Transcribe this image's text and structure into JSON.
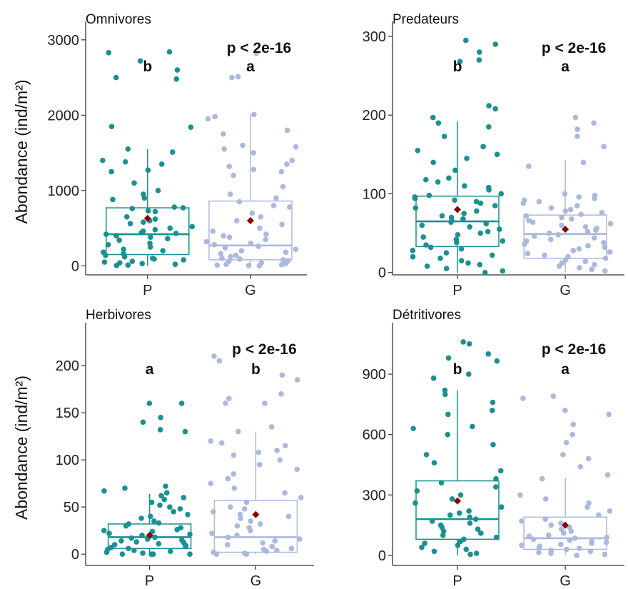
{
  "colors": {
    "P": "#1b9090",
    "G": "#aab9dc",
    "mean": "#8b0000",
    "axis": "#333333"
  },
  "chart_data": [
    {
      "type": "boxplot",
      "title": "Omnivores",
      "ylabel": "Abondance (ind/m²)",
      "categories": [
        "P",
        "G"
      ],
      "ylim": [
        -120,
        3150
      ],
      "yticks": [
        0,
        1000,
        2000,
        3000
      ],
      "yticklabels": [
        "0",
        "1000",
        "2000",
        "3000"
      ],
      "pvalue": "p < 2e-16",
      "letters": [
        "b",
        "a"
      ],
      "boxes": [
        {
          "q1": 150,
          "median": 420,
          "q3": 770,
          "whisker_low": 0,
          "whisker_high": 1550,
          "mean": 630
        },
        {
          "q1": 80,
          "median": 270,
          "q3": 860,
          "whisker_low": 0,
          "whisker_high": 2020,
          "mean": 600
        }
      ],
      "points": [
        [
          2840,
          2830,
          2720,
          2600,
          2500,
          2480,
          1850,
          1840,
          1550,
          1510,
          1400,
          1380,
          1350,
          1270,
          1250,
          1100,
          1000,
          950,
          900,
          880,
          780,
          770,
          760,
          730,
          720,
          650,
          620,
          600,
          580,
          560,
          520,
          500,
          480,
          460,
          440,
          430,
          420,
          400,
          380,
          360,
          340,
          300,
          280,
          250,
          220,
          200,
          180,
          160,
          140,
          120,
          100,
          90,
          80,
          60,
          50,
          40,
          30,
          20,
          10,
          5
        ],
        [
          2820,
          2510,
          2500,
          2010,
          1980,
          1950,
          1800,
          1750,
          1600,
          1580,
          1550,
          1500,
          1400,
          1350,
          1320,
          1280,
          1250,
          1200,
          1050,
          950,
          900,
          850,
          800,
          780,
          700,
          650,
          600,
          550,
          500,
          460,
          420,
          400,
          380,
          350,
          320,
          300,
          280,
          260,
          240,
          220,
          200,
          180,
          160,
          140,
          120,
          100,
          90,
          80,
          70,
          60,
          50,
          40,
          30,
          20,
          15,
          10,
          5,
          0
        ]
      ]
    },
    {
      "type": "boxplot",
      "title": "Predateurs",
      "ylabel": "",
      "categories": [
        "P",
        "G"
      ],
      "ylim": [
        -3,
        310
      ],
      "yticks": [
        0,
        100,
        200,
        300
      ],
      "yticklabels": [
        "0",
        "100",
        "200",
        "300"
      ],
      "pvalue": "p < 2e-16",
      "letters": [
        "b",
        "a"
      ],
      "boxes": [
        {
          "q1": 33,
          "median": 65,
          "q3": 97,
          "whisker_low": 0,
          "whisker_high": 192,
          "mean": 80
        },
        {
          "q1": 18,
          "median": 49,
          "q3": 73,
          "whisker_low": 0,
          "whisker_high": 143,
          "mean": 55
        }
      ],
      "points": [
        [
          295,
          290,
          280,
          270,
          268,
          212,
          208,
          197,
          190,
          185,
          173,
          160,
          155,
          150,
          145,
          140,
          130,
          120,
          118,
          115,
          110,
          108,
          105,
          100,
          98,
          96,
          94,
          92,
          90,
          88,
          85,
          82,
          78,
          75,
          72,
          70,
          68,
          66,
          64,
          62,
          60,
          58,
          55,
          52,
          50,
          48,
          45,
          42,
          40,
          38,
          35,
          32,
          30,
          28,
          25,
          22,
          20,
          18,
          15,
          12,
          10,
          8,
          5,
          2,
          0
        ],
        [
          197,
          190,
          182,
          173,
          160,
          140,
          135,
          100,
          98,
          96,
          94,
          92,
          90,
          88,
          85,
          82,
          80,
          78,
          76,
          74,
          72,
          70,
          68,
          66,
          64,
          62,
          60,
          58,
          56,
          54,
          52,
          50,
          48,
          46,
          44,
          42,
          40,
          38,
          36,
          34,
          32,
          30,
          28,
          26,
          24,
          22,
          20,
          18,
          16,
          14,
          12,
          10,
          8,
          6,
          4,
          2
        ]
      ]
    },
    {
      "type": "boxplot",
      "title": "Herbivores",
      "ylabel": "Abondance (ind/m²)",
      "categories": [
        "P",
        "G"
      ],
      "ylim": [
        -12,
        238
      ],
      "yticks": [
        0,
        50,
        100,
        150,
        200
      ],
      "yticklabels": [
        "0",
        "50",
        "100",
        "150",
        "200"
      ],
      "pvalue": "p < 2e-16",
      "letters": [
        "a",
        "b"
      ],
      "boxes": [
        {
          "q1": 6,
          "median": 18,
          "q3": 32,
          "whisker_low": 0,
          "whisker_high": 64,
          "mean": 20
        },
        {
          "q1": 2,
          "median": 18,
          "q3": 57,
          "whisker_low": 0,
          "whisker_high": 130,
          "mean": 42
        }
      ],
      "points": [
        [
          160,
          160,
          145,
          140,
          132,
          130,
          72,
          70,
          67,
          65,
          62,
          60,
          58,
          55,
          52,
          50,
          48,
          45,
          42,
          40,
          38,
          35,
          33,
          32,
          30,
          28,
          26,
          25,
          24,
          22,
          21,
          20,
          19,
          18,
          17,
          16,
          15,
          14,
          13,
          12,
          11,
          10,
          9,
          8,
          7,
          6,
          5,
          4,
          3,
          2,
          1,
          0,
          0,
          0,
          0
        ],
        [
          210,
          205,
          190,
          185,
          170,
          165,
          160,
          160,
          135,
          130,
          120,
          118,
          115,
          110,
          108,
          105,
          100,
          95,
          90,
          85,
          80,
          75,
          70,
          65,
          60,
          55,
          50,
          48,
          45,
          42,
          40,
          38,
          35,
          32,
          30,
          28,
          25,
          22,
          20,
          18,
          16,
          14,
          12,
          10,
          8,
          6,
          5,
          4,
          3,
          2,
          1,
          0,
          0
        ]
      ]
    },
    {
      "type": "boxplot",
      "title": "Détritivores",
      "ylabel": "",
      "categories": [
        "P",
        "G"
      ],
      "ylim": [
        -50,
        1120
      ],
      "yticks": [
        0,
        300,
        600,
        900
      ],
      "yticklabels": [
        "0",
        "300",
        "600",
        "900"
      ],
      "pvalue": "p < 2e-16",
      "letters": [
        "b",
        "a"
      ],
      "boxes": [
        {
          "q1": 80,
          "median": 180,
          "q3": 370,
          "whisker_low": 0,
          "whisker_high": 820,
          "mean": 270
        },
        {
          "q1": 30,
          "median": 85,
          "q3": 190,
          "whisker_low": 0,
          "whisker_high": 385,
          "mean": 150
        }
      ],
      "points": [
        [
          1060,
          1050,
          1000,
          980,
          965,
          900,
          880,
          820,
          800,
          760,
          720,
          700,
          640,
          630,
          600,
          550,
          500,
          460,
          420,
          380,
          360,
          340,
          320,
          300,
          280,
          260,
          240,
          220,
          210,
          200,
          190,
          180,
          170,
          160,
          150,
          140,
          130,
          120,
          110,
          100,
          90,
          80,
          70,
          60,
          50,
          40,
          30,
          20,
          10,
          5
        ],
        [
          790,
          780,
          720,
          700,
          650,
          600,
          560,
          500,
          480,
          440,
          400,
          380,
          300,
          280,
          260,
          240,
          220,
          200,
          180,
          170,
          160,
          150,
          140,
          130,
          120,
          110,
          100,
          95,
          90,
          85,
          80,
          75,
          70,
          65,
          60,
          55,
          50,
          45,
          40,
          35,
          30,
          25,
          20,
          15,
          10,
          5,
          0
        ]
      ]
    }
  ]
}
